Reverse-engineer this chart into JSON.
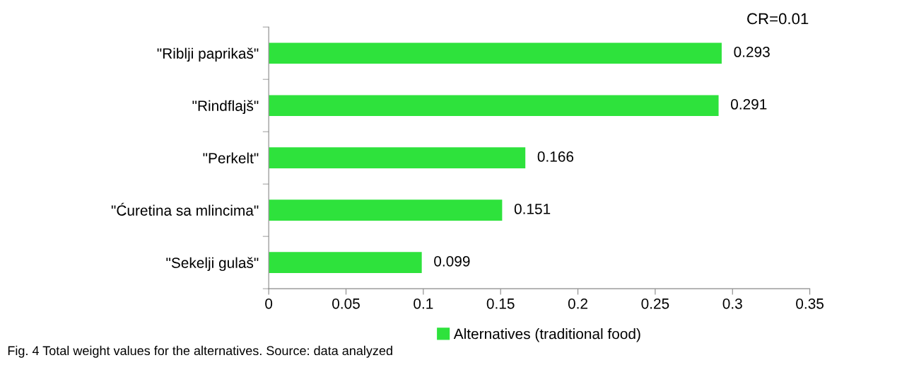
{
  "chart_data": {
    "type": "bar",
    "orientation": "horizontal",
    "categories": [
      "\"Riblji paprikaš\"",
      "\"Rindflajš\"",
      "\"Perkelt\"",
      "\"Ćuretina sa mlincima\"",
      "\"Sekelji gulaš\""
    ],
    "series": [
      {
        "name": "Alternatives (traditional food)",
        "color": "#2ee23c",
        "values": [
          0.293,
          0.291,
          0.166,
          0.151,
          0.099
        ]
      }
    ],
    "xlim": [
      0,
      0.35
    ],
    "xticks": [
      0,
      0.05,
      0.1,
      0.15,
      0.2,
      0.25,
      0.3,
      0.35
    ],
    "data_labels": true,
    "grid": false,
    "legend": "bottom",
    "annotations": [
      "CR=0.01",
      "Fig. 4 Total weight values for the alternatives. Source: data analyzed"
    ]
  }
}
